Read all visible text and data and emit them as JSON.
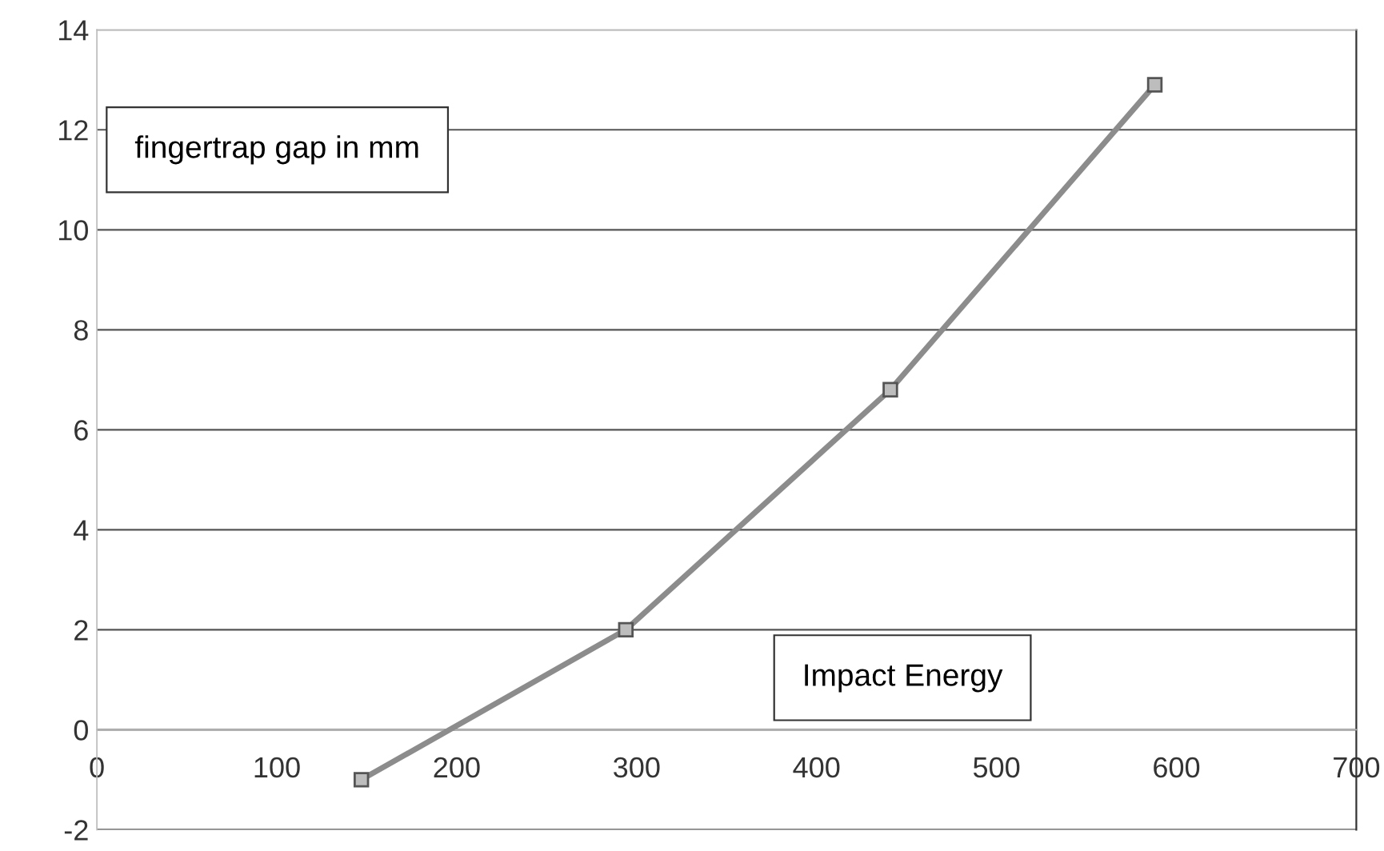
{
  "chart_data": {
    "type": "line",
    "xlabel": "Impact Energy",
    "ylabel": "fingertrap gap in mm",
    "x": [
      147,
      294,
      441,
      588
    ],
    "series": [
      {
        "color": "#8c8c8c",
        "values": [
          -1,
          2,
          6.8,
          12.9
        ]
      }
    ],
    "xlim": [
      0,
      700
    ],
    "xticks": [
      0,
      100,
      200,
      300,
      400,
      500,
      600,
      700
    ],
    "ylim": [
      -2,
      14
    ],
    "yticks": [
      -2,
      0,
      2,
      4,
      6,
      8,
      10,
      12,
      14
    ],
    "grid": "y",
    "marker": "square",
    "line_style": "solid"
  }
}
